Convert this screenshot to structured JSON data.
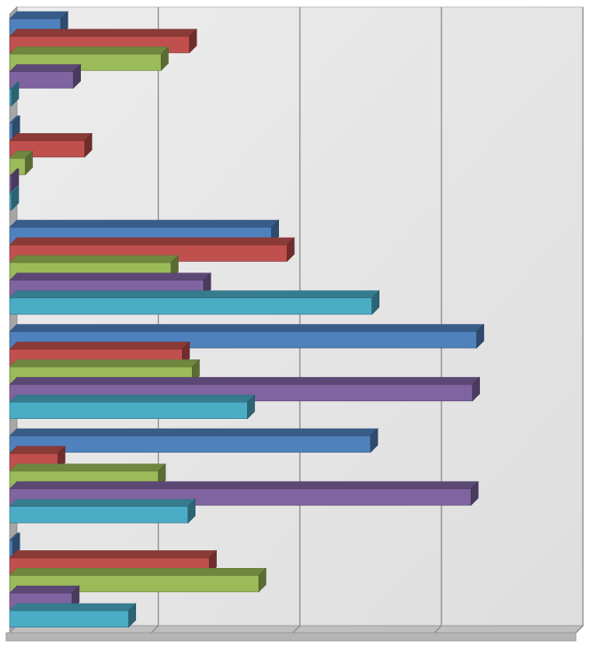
{
  "chart_data": {
    "type": "bar",
    "orientation": "horizontal",
    "style": "3d",
    "grid": true,
    "legend": "none",
    "xlim": [
      0,
      4
    ],
    "categories": [
      "",
      "",
      "",
      "",
      "",
      ""
    ],
    "series": [
      {
        "color": "#4f81bd",
        "values": [
          0.36,
          0.02,
          1.85,
          3.3,
          2.55,
          0.02
        ]
      },
      {
        "color": "#c0504d",
        "values": [
          1.27,
          0.53,
          1.96,
          1.22,
          0.34,
          1.41
        ]
      },
      {
        "color": "#9bbb59",
        "values": [
          1.07,
          0.11,
          1.14,
          1.29,
          1.05,
          1.76
        ]
      },
      {
        "color": "#8064a2",
        "values": [
          0.45,
          0.01,
          1.37,
          3.27,
          3.26,
          0.44
        ]
      },
      {
        "color": "#4bacc6",
        "values": [
          0.01,
          0.01,
          2.56,
          1.68,
          1.26,
          0.84
        ]
      }
    ]
  }
}
